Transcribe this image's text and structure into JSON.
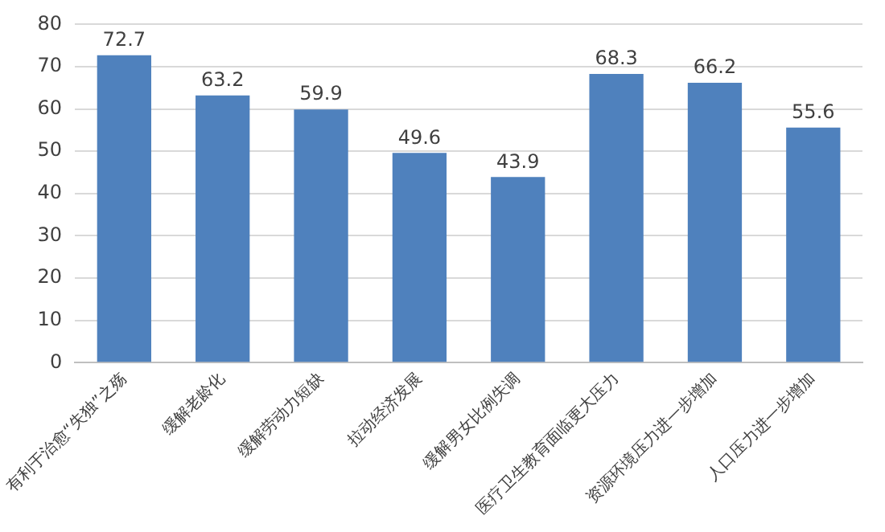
{
  "chart_data": {
    "type": "bar",
    "categories": [
      "有利于治愈“失独”之殇",
      "缓解老龄化",
      "缓解劳动力短缺",
      "拉动经济发展",
      "缓解男女比例失调",
      "医疗卫生教育面临更大压力",
      "资源环境压力进一步增加",
      "人口压力进一步增加"
    ],
    "values": [
      72.7,
      63.2,
      59.9,
      49.6,
      43.9,
      68.3,
      66.2,
      55.6
    ],
    "color": "#4f81bd",
    "ylim": [
      0,
      80
    ],
    "yticks": [
      0,
      10,
      20,
      30,
      40,
      50,
      60,
      70,
      80
    ],
    "grid": "y",
    "data_labels": true
  }
}
